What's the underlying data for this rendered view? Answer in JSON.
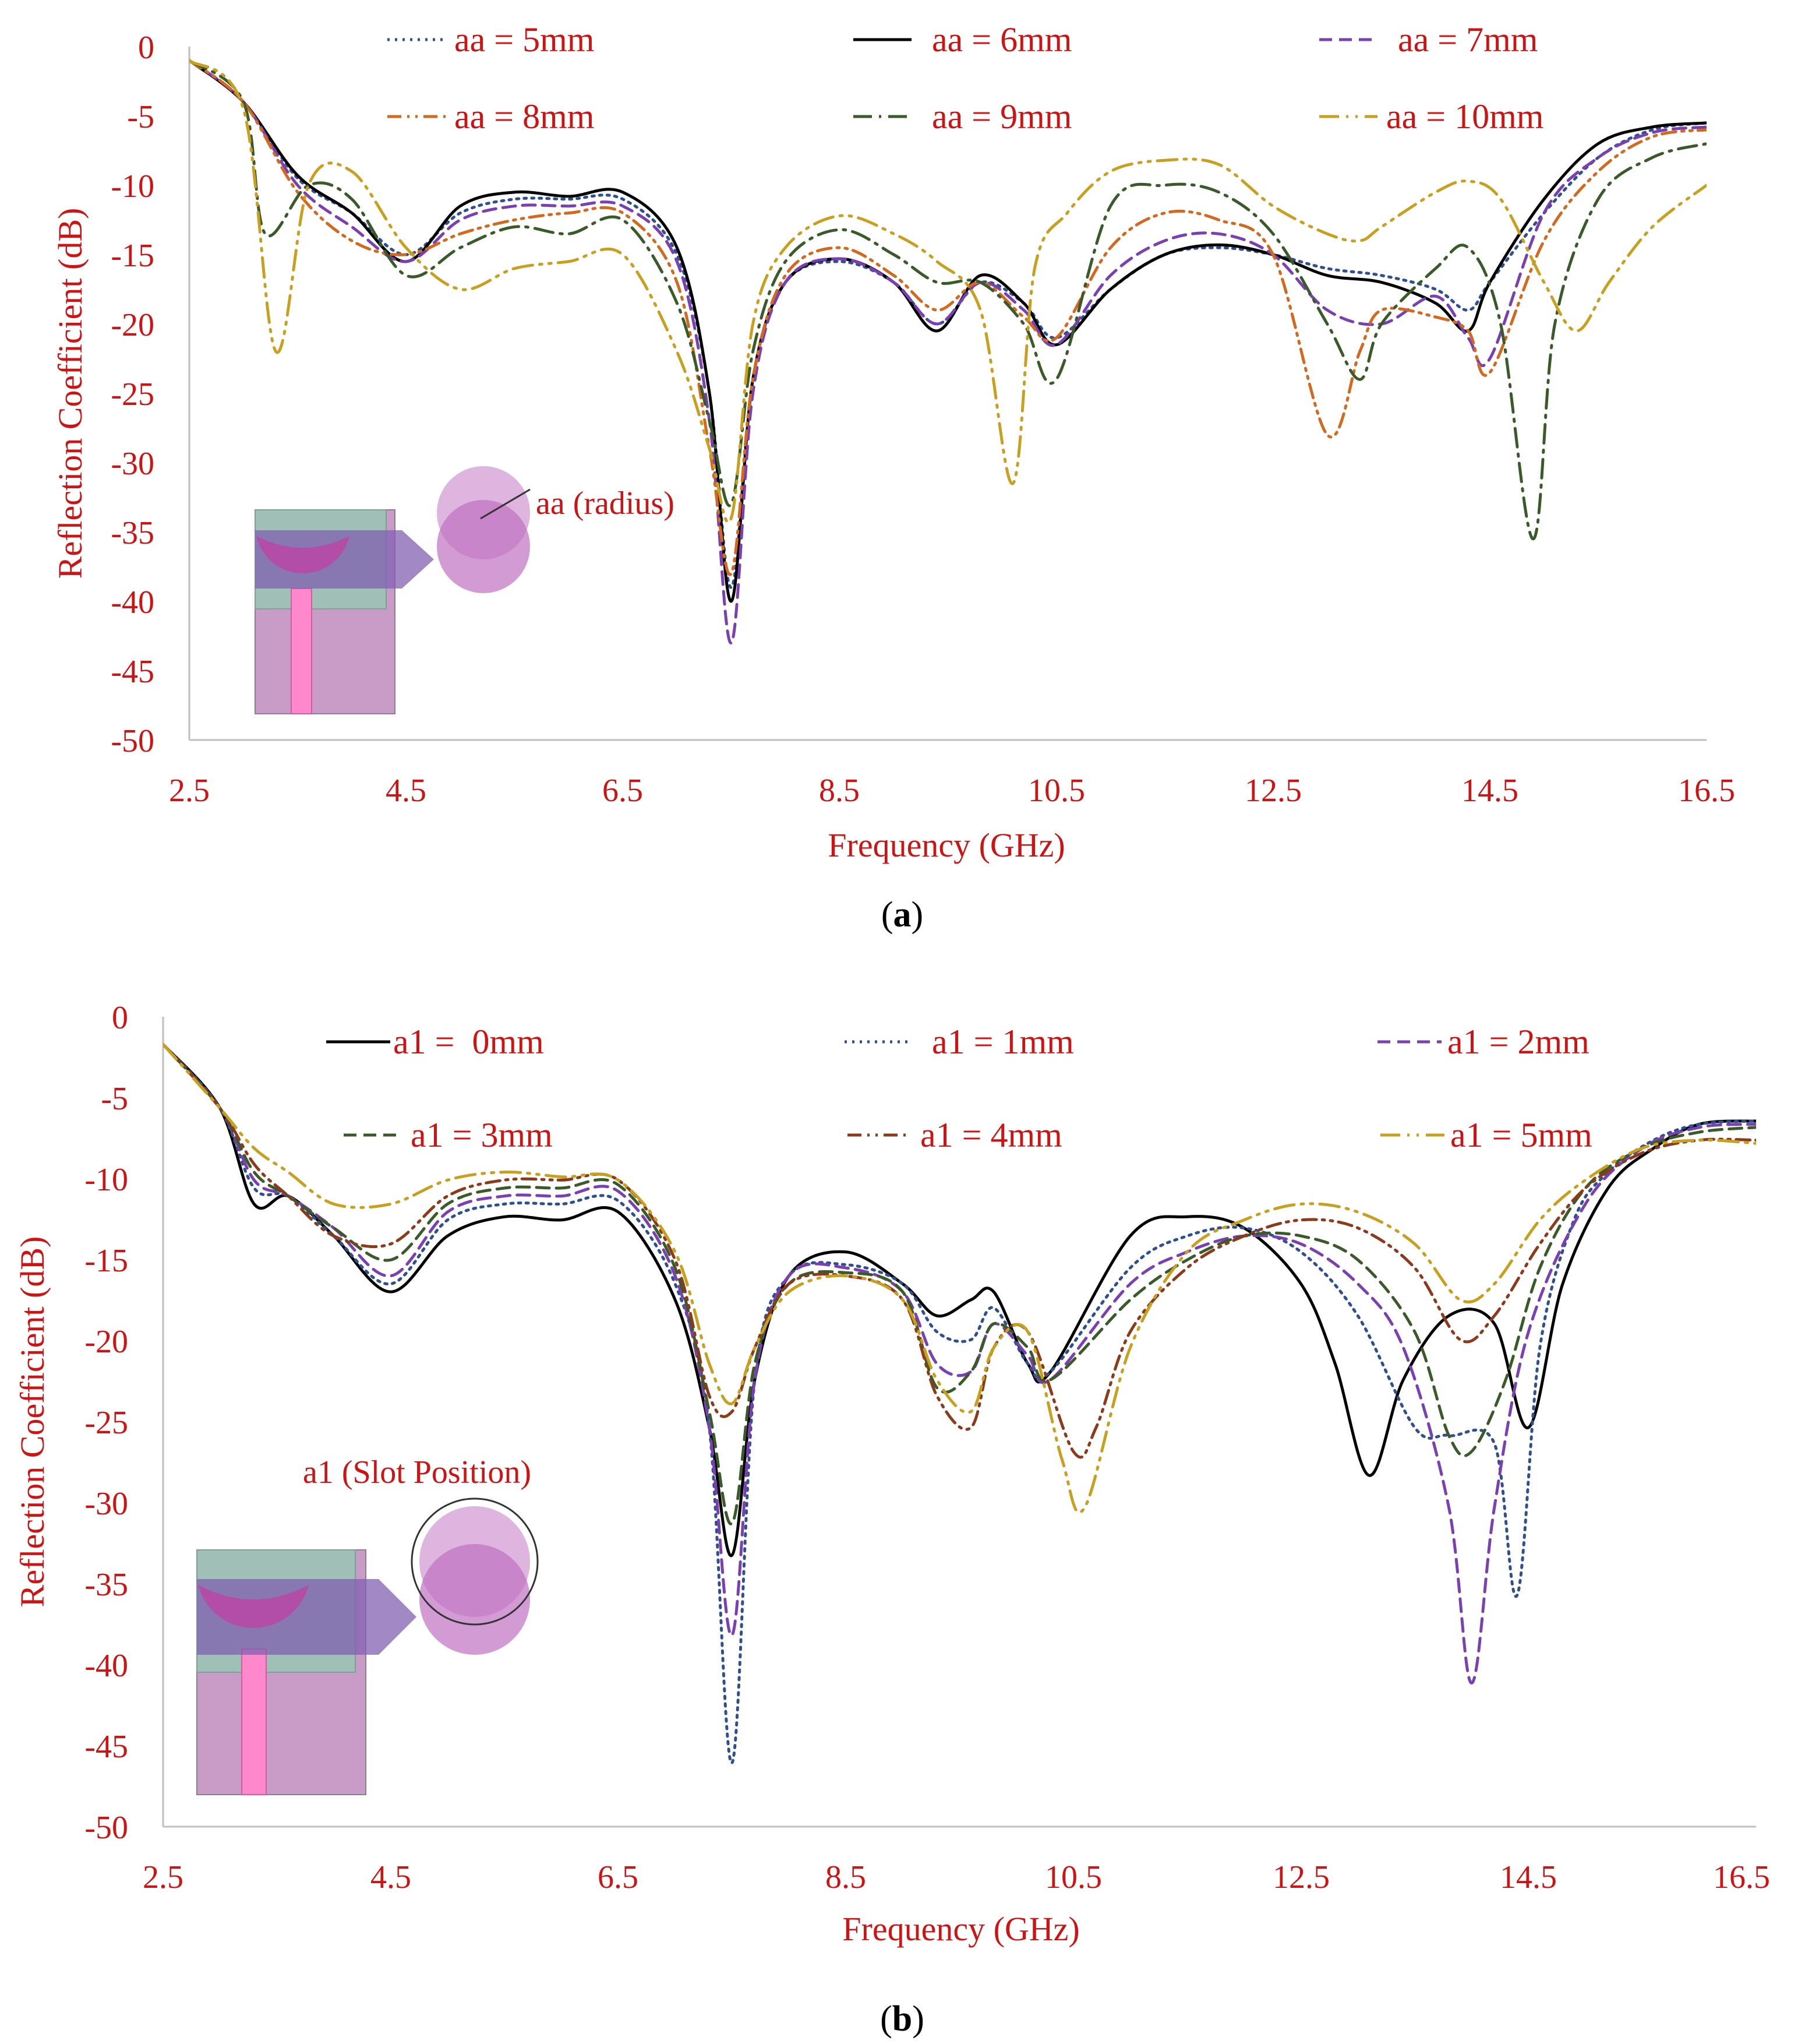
{
  "figure": {
    "panel_labels": [
      {
        "prefix": "(",
        "letter": "a",
        "suffix": ")"
      },
      {
        "prefix": "(",
        "letter": "b",
        "suffix": ")"
      }
    ]
  },
  "colors": {
    "axis_text": "#cc1414",
    "axis_line": "#bfbfbf",
    "navy": "#2f4f8f",
    "black": "#000000",
    "purple": "#7a3fb0",
    "orange": "#d2691e",
    "green": "#3a5a2a",
    "gold": "#c8a020",
    "brown": "#8b3a1a"
  },
  "chart_data": [
    {
      "type": "line",
      "panel": "a",
      "xlabel": "Frequency (GHz)",
      "ylabel": "Reflection Coefficient (dB)",
      "xlim": [
        2.5,
        16.5
      ],
      "ylim": [
        -50,
        0
      ],
      "xticks": [
        "2.5",
        "4.5",
        "6.5",
        "8.5",
        "10.5",
        "12.5",
        "14.5",
        "16.5"
      ],
      "yticks": [
        "0",
        "-5",
        "-10",
        "-15",
        "-20",
        "-25",
        "-30",
        "-35",
        "-40",
        "-45",
        "-50"
      ],
      "annotation": "aa (radius)",
      "series": [
        {
          "name": "aa = 5mm",
          "color": "#2f4f8f",
          "dash": "4 9",
          "x": [
            2.5,
            3.0,
            3.5,
            4.0,
            4.5,
            5.0,
            5.5,
            6.0,
            6.5,
            7.0,
            7.3,
            7.5,
            7.7,
            8.0,
            8.5,
            9.0,
            9.4,
            9.8,
            10.2,
            10.5,
            11.0,
            11.5,
            12.0,
            12.5,
            13.0,
            13.5,
            14.0,
            14.3,
            14.5,
            15.0,
            15.5,
            16.0,
            16.5
          ],
          "values": [
            -1,
            -4,
            -9.5,
            -12,
            -15,
            -12,
            -11,
            -11,
            -11,
            -15,
            -25,
            -39,
            -24,
            -17,
            -15.5,
            -17,
            -20,
            -17,
            -18.5,
            -21,
            -17.5,
            -15,
            -14.5,
            -15,
            -16,
            -16.5,
            -17.5,
            -19,
            -17,
            -12,
            -8,
            -6,
            -5.5
          ]
        },
        {
          "name": "aa = 6mm",
          "color": "#000000",
          "dash": "none",
          "x": [
            2.5,
            3.0,
            3.5,
            4.0,
            4.5,
            5.0,
            5.5,
            6.0,
            6.5,
            7.0,
            7.3,
            7.5,
            7.7,
            8.0,
            8.5,
            9.0,
            9.4,
            9.8,
            10.2,
            10.5,
            11.0,
            11.5,
            12.0,
            12.5,
            13.0,
            13.5,
            14.0,
            14.3,
            14.5,
            15.0,
            15.5,
            16.0,
            16.5
          ],
          "values": [
            -1,
            -4,
            -9.3,
            -12,
            -15.5,
            -11.5,
            -10.5,
            -10.8,
            -10.5,
            -14.5,
            -25,
            -40,
            -24,
            -17,
            -15.3,
            -17,
            -20.5,
            -16.5,
            -18.5,
            -21.5,
            -17.5,
            -15,
            -14.3,
            -15,
            -16.5,
            -17,
            -18.5,
            -20.5,
            -17,
            -11,
            -7,
            -5.8,
            -5.5
          ]
        },
        {
          "name": "aa = 7mm",
          "color": "#7a3fb0",
          "dash": "22 12",
          "x": [
            2.5,
            3.0,
            3.5,
            4.0,
            4.5,
            5.0,
            5.5,
            6.0,
            6.5,
            7.0,
            7.3,
            7.5,
            7.7,
            8.0,
            8.5,
            9.0,
            9.4,
            9.8,
            10.2,
            10.5,
            11.0,
            11.5,
            12.0,
            12.5,
            13.0,
            13.5,
            14.0,
            14.3,
            14.5,
            15.0,
            15.5,
            16.0,
            16.5
          ],
          "values": [
            -1,
            -4,
            -10,
            -13,
            -15.5,
            -12.5,
            -11.5,
            -11.5,
            -11.5,
            -15.5,
            -27,
            -43,
            -25,
            -17,
            -15.3,
            -17,
            -20,
            -17,
            -19,
            -21.5,
            -16.5,
            -14,
            -13.5,
            -15,
            -19,
            -20,
            -18,
            -21,
            -22.5,
            -12,
            -8,
            -6.2,
            -5.8
          ]
        },
        {
          "name": "aa = 8mm",
          "color": "#d2691e",
          "dash": "24 10 4 10 4 10",
          "x": [
            2.5,
            3.0,
            3.5,
            4.0,
            4.5,
            5.0,
            5.5,
            6.0,
            6.5,
            7.0,
            7.3,
            7.5,
            7.7,
            8.0,
            8.5,
            9.0,
            9.4,
            9.8,
            10.2,
            10.5,
            11.0,
            11.5,
            12.0,
            12.5,
            13.0,
            13.3,
            13.5,
            14.0,
            14.3,
            14.5,
            15.0,
            15.5,
            16.0,
            16.5
          ],
          "values": [
            -1,
            -4,
            -10.5,
            -14,
            -15,
            -13.5,
            -12.5,
            -12,
            -12,
            -17,
            -29,
            -38,
            -24,
            -16.5,
            -14.5,
            -16.5,
            -19,
            -17,
            -19.5,
            -21,
            -14.5,
            -12,
            -12.5,
            -15,
            -28,
            -22,
            -19,
            -19.5,
            -20.5,
            -23.5,
            -14,
            -9,
            -6.5,
            -6
          ]
        },
        {
          "name": "aa = 9mm",
          "color": "#3a5a2a",
          "dash": "32 12 4 12",
          "x": [
            2.5,
            3.0,
            3.2,
            3.6,
            4.0,
            4.5,
            5.0,
            5.5,
            6.0,
            6.5,
            7.0,
            7.3,
            7.5,
            7.7,
            8.0,
            8.5,
            9.0,
            9.4,
            9.8,
            10.2,
            10.5,
            11.0,
            11.5,
            12.0,
            12.5,
            13.0,
            13.3,
            13.5,
            14.0,
            14.3,
            14.6,
            14.9,
            15.1,
            15.5,
            16.0,
            16.5
          ],
          "values": [
            -1,
            -4,
            -13.5,
            -10,
            -11,
            -16.5,
            -14.5,
            -13,
            -13.5,
            -12.5,
            -18.5,
            -27,
            -33,
            -22,
            -15.5,
            -13.2,
            -15,
            -17,
            -17,
            -20,
            -24,
            -11.5,
            -10,
            -10.5,
            -13.5,
            -20,
            -24,
            -20,
            -16,
            -14.5,
            -20,
            -35.5,
            -20,
            -11,
            -8,
            -7
          ]
        },
        {
          "name": "aa = 10mm",
          "color": "#c8a020",
          "dash": "34 12 4 12 4 12",
          "x": [
            2.5,
            3.0,
            3.3,
            3.6,
            4.0,
            4.5,
            5.0,
            5.5,
            6.0,
            6.5,
            7.0,
            7.3,
            7.5,
            7.7,
            8.0,
            8.5,
            9.0,
            9.4,
            9.8,
            10.1,
            10.3,
            10.6,
            11.0,
            11.5,
            12.0,
            12.5,
            13.0,
            13.3,
            13.5,
            14.0,
            14.3,
            14.6,
            15.0,
            15.3,
            15.6,
            16.0,
            16.5
          ],
          "values": [
            -1,
            -4.5,
            -22,
            -10,
            -9,
            -14.5,
            -17.5,
            -16,
            -15.5,
            -15,
            -22,
            -29,
            -34,
            -20,
            -14.5,
            -12.2,
            -13.5,
            -15.5,
            -19,
            -31.5,
            -16,
            -12,
            -9,
            -8.2,
            -8.5,
            -11.5,
            -13.5,
            -14,
            -13,
            -10.5,
            -9.7,
            -11,
            -17,
            -20.5,
            -17,
            -13,
            -10
          ]
        }
      ]
    },
    {
      "type": "line",
      "panel": "b",
      "xlabel": "Frequency (GHz)",
      "ylabel": "Reflection Coefficient (dB)",
      "xlim": [
        2.5,
        16.5
      ],
      "ylim": [
        -50,
        0
      ],
      "xticks": [
        "2.5",
        "4.5",
        "6.5",
        "8.5",
        "10.5",
        "12.5",
        "14.5",
        "16.5"
      ],
      "yticks": [
        "0",
        "-5",
        "-10",
        "-15",
        "-20",
        "-25",
        "-30",
        "-35",
        "-40",
        "-45",
        "-50"
      ],
      "annotation": "a1 (Slot Position)",
      "series": [
        {
          "name": "a1 =  0mm",
          "color": "#000000",
          "dash": "none",
          "x": [
            2.5,
            3.0,
            3.3,
            3.6,
            4.0,
            4.5,
            5.0,
            5.5,
            6.0,
            6.5,
            7.0,
            7.3,
            7.5,
            7.7,
            8.0,
            8.5,
            9.0,
            9.3,
            9.6,
            9.8,
            10.1,
            10.3,
            11.0,
            11.5,
            12.0,
            12.5,
            12.8,
            13.1,
            13.4,
            13.8,
            14.2,
            14.5,
            14.8,
            15.2,
            15.6,
            16.0,
            16.5
          ],
          "values": [
            -1,
            -5,
            -11,
            -10.5,
            -13,
            -16.5,
            -13,
            -11.8,
            -12,
            -11.5,
            -17,
            -25,
            -33,
            -22,
            -15.5,
            -14,
            -16,
            -18,
            -17,
            -16.5,
            -21,
            -21.5,
            -13,
            -11.8,
            -12.5,
            -16,
            -21,
            -28,
            -22,
            -18,
            -18.5,
            -25,
            -16,
            -10,
            -7.5,
            -6,
            -5.8
          ]
        },
        {
          "name": "a1 = 1mm",
          "color": "#2f4f8f",
          "dash": "4 9",
          "x": [
            2.5,
            3.0,
            3.3,
            3.6,
            4.0,
            4.5,
            5.0,
            5.5,
            6.0,
            6.5,
            7.0,
            7.3,
            7.5,
            7.7,
            8.0,
            8.5,
            9.0,
            9.3,
            9.6,
            9.8,
            10.1,
            10.3,
            11.0,
            11.5,
            12.0,
            12.5,
            13.0,
            13.5,
            13.8,
            14.2,
            14.4,
            14.6,
            14.9,
            15.2,
            15.6,
            16.0,
            16.5
          ],
          "values": [
            -1,
            -5,
            -10,
            -10.5,
            -13,
            -16,
            -12,
            -11,
            -11,
            -10.8,
            -16,
            -25,
            -46,
            -22,
            -15.5,
            -14.8,
            -16,
            -19,
            -19.5,
            -17.5,
            -21,
            -21.5,
            -15,
            -13,
            -12.5,
            -14,
            -18,
            -25,
            -25.5,
            -26,
            -35.5,
            -20,
            -12,
            -9,
            -7,
            -6,
            -5.8
          ]
        },
        {
          "name": "a1 = 2mm",
          "color": "#7a3fb0",
          "dash": "22 12",
          "x": [
            2.5,
            3.0,
            3.3,
            3.6,
            4.0,
            4.5,
            5.0,
            5.5,
            6.0,
            6.5,
            7.0,
            7.3,
            7.5,
            7.7,
            8.0,
            8.5,
            9.0,
            9.3,
            9.6,
            9.8,
            10.1,
            10.3,
            11.0,
            11.5,
            12.0,
            12.5,
            13.0,
            13.4,
            13.8,
            14.0,
            14.2,
            14.5,
            15.0,
            15.5,
            16.0,
            16.5
          ],
          "values": [
            -1,
            -5,
            -9.5,
            -10.5,
            -12.5,
            -15.5,
            -11.5,
            -10.5,
            -10.5,
            -10.2,
            -15.5,
            -25,
            -38,
            -22,
            -15.5,
            -15,
            -16.5,
            -21,
            -21.5,
            -18.5,
            -20.5,
            -22,
            -16,
            -14,
            -13,
            -13.5,
            -16,
            -20,
            -30,
            -41,
            -30,
            -19,
            -11,
            -7.5,
            -6.2,
            -6
          ]
        },
        {
          "name": "a1 = 3mm",
          "color": "#3a5a2a",
          "dash": "22 12",
          "x": [
            2.5,
            3.0,
            3.3,
            3.6,
            4.0,
            4.5,
            5.0,
            5.5,
            6.0,
            6.5,
            7.0,
            7.3,
            7.5,
            7.7,
            8.0,
            8.5,
            9.0,
            9.3,
            9.6,
            9.8,
            10.1,
            10.3,
            11.0,
            11.5,
            12.0,
            12.5,
            13.0,
            13.5,
            13.8,
            14.0,
            14.3,
            14.6,
            15.0,
            15.5,
            16.0,
            16.5
          ],
          "values": [
            -1,
            -5,
            -9,
            -10.5,
            -12.5,
            -14.5,
            -11,
            -10,
            -10,
            -9.8,
            -15,
            -24,
            -31,
            -21,
            -16,
            -15.3,
            -16.5,
            -22.5,
            -21.5,
            -18.5,
            -20,
            -22,
            -17,
            -14.5,
            -13,
            -13,
            -14.5,
            -19,
            -25.5,
            -26.5,
            -22,
            -15,
            -10,
            -7.5,
            -6.5,
            -6.2
          ]
        },
        {
          "name": "a1 = 4mm",
          "color": "#8b3a1a",
          "dash": "24 10 4 10 4 10",
          "x": [
            2.5,
            3.0,
            3.3,
            3.6,
            4.0,
            4.5,
            5.0,
            5.5,
            6.0,
            6.5,
            7.0,
            7.3,
            7.5,
            7.7,
            8.0,
            8.5,
            9.0,
            9.3,
            9.6,
            9.8,
            10.1,
            10.5,
            10.7,
            11.0,
            11.5,
            12.0,
            12.5,
            13.0,
            13.5,
            13.9,
            14.2,
            14.6,
            15.0,
            15.5,
            16.0,
            16.5
          ],
          "values": [
            -1,
            -5,
            -8.5,
            -10.5,
            -13,
            -13.5,
            -10.5,
            -9.5,
            -9.5,
            -9.5,
            -14.5,
            -23,
            -24,
            -20,
            -16,
            -15.5,
            -17,
            -23,
            -25,
            -20,
            -19,
            -26.5,
            -25,
            -19,
            -15,
            -13,
            -12,
            -12.5,
            -15,
            -19.5,
            -18,
            -13.5,
            -10,
            -7.8,
            -7,
            -7
          ]
        },
        {
          "name": "a1 = 5mm",
          "color": "#c8a020",
          "dash": "34 12 4 12 4 12",
          "x": [
            2.5,
            3.0,
            3.3,
            3.6,
            4.0,
            4.5,
            5.0,
            5.5,
            6.0,
            6.5,
            7.0,
            7.3,
            7.5,
            7.7,
            8.0,
            8.5,
            9.0,
            9.3,
            9.6,
            9.8,
            10.1,
            10.4,
            10.6,
            11.0,
            11.5,
            12.0,
            12.5,
            13.0,
            13.5,
            13.9,
            14.2,
            14.6,
            15.0,
            15.5,
            16.0,
            16.5
          ],
          "values": [
            -1,
            -5,
            -7.5,
            -9,
            -11,
            -11,
            -9.5,
            -9,
            -9.3,
            -9.5,
            -14,
            -21,
            -23.5,
            -20,
            -16.5,
            -15.5,
            -17,
            -22,
            -24,
            -20,
            -19,
            -27,
            -30,
            -20,
            -14,
            -12,
            -11,
            -11.5,
            -13.5,
            -17,
            -16,
            -12,
            -9.5,
            -7.5,
            -7,
            -7.2
          ]
        }
      ]
    }
  ]
}
